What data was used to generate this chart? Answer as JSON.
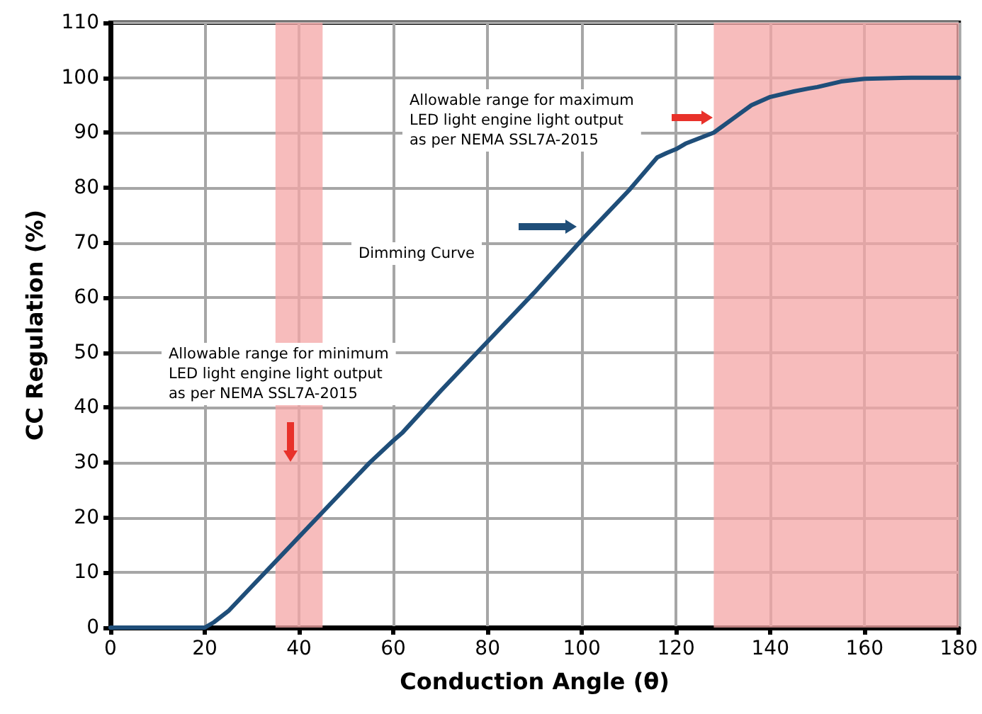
{
  "chart_data": {
    "type": "line",
    "xlabel": "Conduction Angle (θ)",
    "ylabel": "CC Regulation (%)",
    "x": [
      0,
      20,
      22,
      25,
      30,
      35,
      40,
      45,
      50,
      55,
      60,
      62,
      70,
      80,
      90,
      100,
      110,
      116,
      118,
      120,
      122,
      125,
      128,
      132,
      136,
      140,
      145,
      148,
      150,
      155,
      160,
      170,
      180
    ],
    "series": [
      {
        "color": "#1f4e79",
        "values": [
          0,
          0,
          1,
          3,
          7.5,
          12,
          16.5,
          21,
          25.5,
          30,
          34,
          35.5,
          43,
          52,
          61,
          70.5,
          79.5,
          85.5,
          86.3,
          87,
          88,
          89,
          90,
          92.5,
          95,
          96.5,
          97.5,
          98,
          98.3,
          99.3,
          99.8,
          100,
          100
        ]
      }
    ],
    "xlim": [
      0,
      180
    ],
    "xticks": [
      0,
      20,
      40,
      60,
      80,
      100,
      120,
      140,
      160,
      180
    ],
    "ylim": [
      0,
      110
    ],
    "yticks": [
      0,
      10,
      20,
      30,
      40,
      50,
      60,
      70,
      80,
      90,
      100,
      110
    ],
    "grid": true,
    "marker": "none",
    "line_style": "solid",
    "bands": [
      {
        "axis": "x",
        "from": 35,
        "to": 45,
        "color": "#f4a6a6"
      },
      {
        "axis": "x",
        "from": 128,
        "to": 180,
        "color": "#f4a6a6"
      }
    ],
    "annotations": [
      "Allowable range for minimum\nLED light engine light output\nas per NEMA SSL7A-2015",
      "Allowable range for maximum\nLED light engine light output\nas per NEMA SSL7A-2015",
      "Dimming Curve"
    ]
  }
}
